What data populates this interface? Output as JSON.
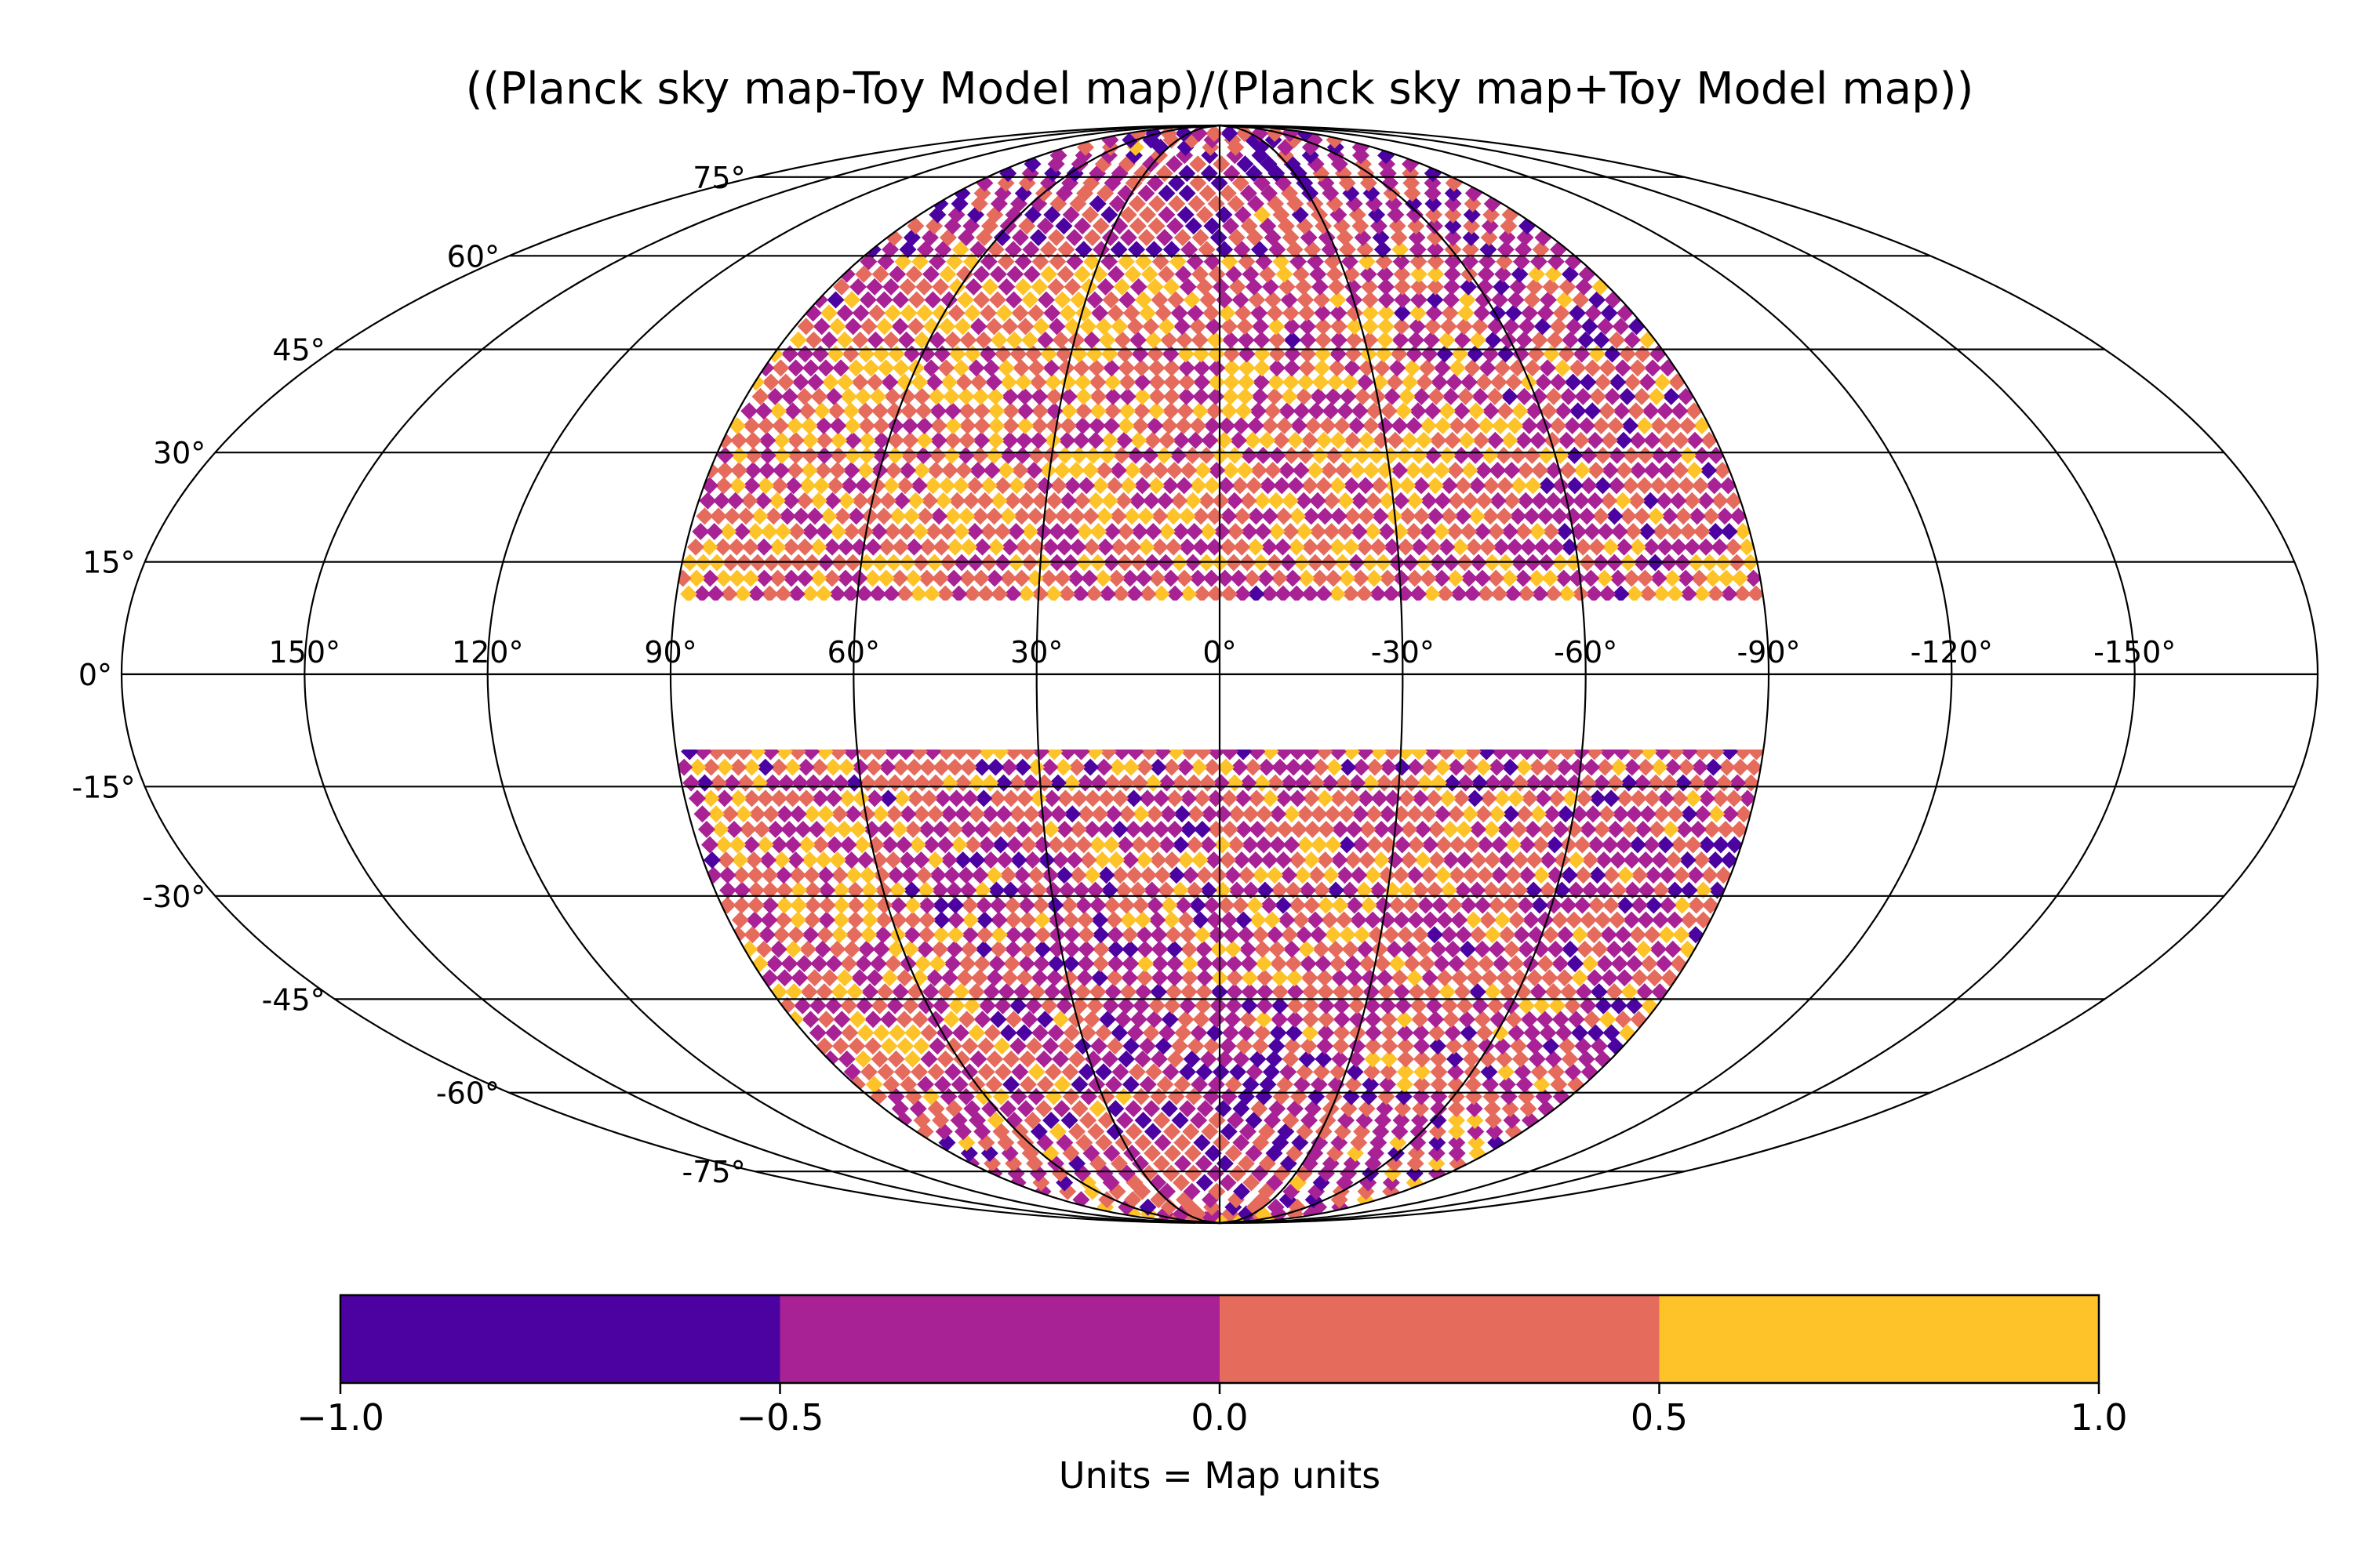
{
  "title": "((Planck sky map-Toy Model map)/(Planck sky map+Toy Model map))",
  "map": {
    "projection": "mollweide",
    "coordinate_grid": true,
    "masked_band": [
      -10,
      10
    ],
    "longitude_labels": [
      "150°",
      "120°",
      "90°",
      "60°",
      "30°",
      "0°",
      "-30°",
      "-60°",
      "-90°",
      "-120°",
      "-150°"
    ],
    "longitude_values": [
      150,
      120,
      90,
      60,
      30,
      0,
      -30,
      -60,
      -90,
      -120,
      -150
    ],
    "latitude_labels": [
      "75°",
      "60°",
      "45°",
      "30°",
      "15°",
      "0°",
      "-15°",
      "-30°",
      "-45°",
      "-60°",
      "-75°"
    ],
    "latitude_values": [
      75,
      60,
      45,
      30,
      15,
      0,
      -15,
      -30,
      -45,
      -60,
      -75
    ],
    "data_extent_longitude": [
      -90,
      90
    ],
    "colormap": "plasma"
  },
  "colorbar": {
    "label": "Units = Map units",
    "tick_labels": [
      "−1.0",
      "−0.5",
      "0.0",
      "0.5",
      "1.0"
    ],
    "tick_values": [
      -1.0,
      -0.5,
      0.0,
      0.5,
      1.0
    ],
    "range": [
      -1.0,
      1.0
    ],
    "bins": [
      {
        "from": -1.0,
        "to": -0.5,
        "color": "#4c02a1"
      },
      {
        "from": -0.5,
        "to": 0.0,
        "color": "#a82296"
      },
      {
        "from": 0.0,
        "to": 0.5,
        "color": "#e56b5d"
      },
      {
        "from": 0.5,
        "to": 1.0,
        "color": "#fdc328"
      }
    ]
  },
  "chart_data": {
    "type": "heatmap",
    "title": "((Planck sky map-Toy Model map)/(Planck sky map+Toy Model map))",
    "xlabel": "",
    "ylabel": "",
    "value_range": [
      -1.0,
      1.0
    ],
    "colorbar_label": "Units = Map units",
    "grid": true
  }
}
